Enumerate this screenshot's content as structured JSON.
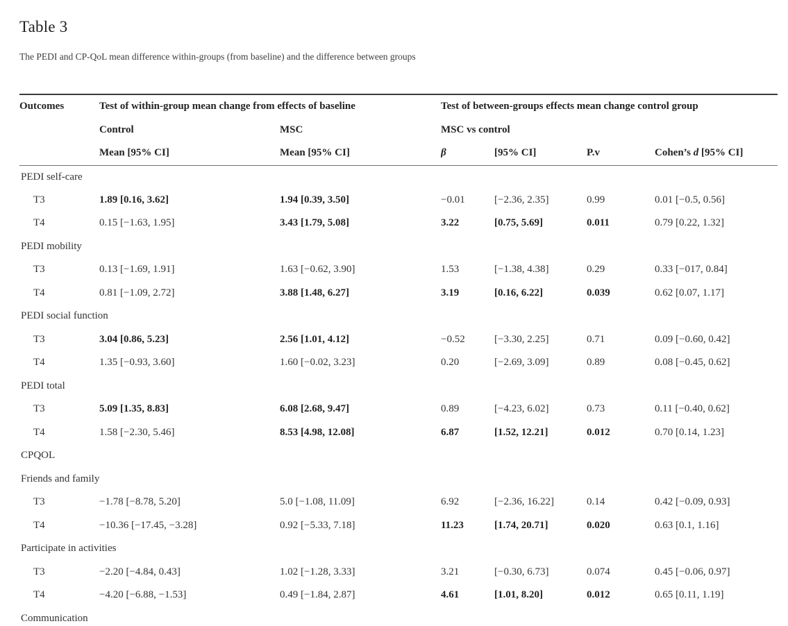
{
  "page": {
    "title": "Table 3",
    "subtitle": "The PEDI and CP-QoL mean difference within-groups (from baseline) and the difference between groups"
  },
  "colors": {
    "text": "#2e2e2e",
    "rule_top": "#3c3c3c",
    "rule_header_bottom": "#6f6f6f",
    "background": "#ffffff"
  },
  "table": {
    "header": {
      "outcomes": "Outcomes",
      "within_group": "Test of within-group mean change from effects of baseline",
      "between_groups": "Test of between-groups effects mean change control group",
      "control": "Control",
      "msc": "MSC",
      "msc_vs_control": "MSC vs control",
      "control_mean": "Mean [95% CI]",
      "msc_mean": "Mean [95% CI]",
      "beta": "β",
      "ci": "[95% CI]",
      "pv": "P.v",
      "cohen_prefix": "Cohen’s ",
      "cohen_d": "d",
      "cohen_suffix": " [95% CI]"
    },
    "sections": [
      {
        "label": "PEDI self-care",
        "rows": [
          {
            "time": "T3",
            "cells": [
              {
                "v": "1.89 [0.16, 3.62]",
                "b": true
              },
              {
                "v": "1.94 [0.39, 3.50]",
                "b": true
              },
              {
                "v": "−0.01",
                "b": false
              },
              {
                "v": "[−2.36, 2.35]",
                "b": false
              },
              {
                "v": "0.99",
                "b": false
              },
              {
                "v": "0.01 [−0.5, 0.56]",
                "b": false
              }
            ]
          },
          {
            "time": "T4",
            "cells": [
              {
                "v": "0.15 [−1.63, 1.95]",
                "b": false
              },
              {
                "v": "3.43 [1.79, 5.08]",
                "b": true
              },
              {
                "v": "3.22",
                "b": true
              },
              {
                "v": "[0.75, 5.69]",
                "b": true
              },
              {
                "v": "0.011",
                "b": true
              },
              {
                "v": "0.79 [0.22, 1.32]",
                "b": false
              }
            ]
          }
        ]
      },
      {
        "label": "PEDI mobility",
        "rows": [
          {
            "time": "T3",
            "cells": [
              {
                "v": "0.13 [−1.69, 1.91]",
                "b": false
              },
              {
                "v": "1.63 [−0.62, 3.90]",
                "b": false
              },
              {
                "v": "1.53",
                "b": false
              },
              {
                "v": "[−1.38, 4.38]",
                "b": false
              },
              {
                "v": "0.29",
                "b": false
              },
              {
                "v": "0.33 [−017, 0.84]",
                "b": false
              }
            ]
          },
          {
            "time": "T4",
            "cells": [
              {
                "v": "0.81 [−1.09, 2.72]",
                "b": false
              },
              {
                "v": "3.88 [1.48, 6.27]",
                "b": true
              },
              {
                "v": "3.19",
                "b": true
              },
              {
                "v": "[0.16, 6.22]",
                "b": true
              },
              {
                "v": "0.039",
                "b": true
              },
              {
                "v": "0.62 [0.07, 1.17]",
                "b": false
              }
            ]
          }
        ]
      },
      {
        "label": "PEDI social function",
        "rows": [
          {
            "time": "T3",
            "cells": [
              {
                "v": "3.04 [0.86, 5.23]",
                "b": true
              },
              {
                "v": "2.56 [1.01, 4.12]",
                "b": true
              },
              {
                "v": "−0.52",
                "b": false
              },
              {
                "v": "[−3.30, 2.25]",
                "b": false
              },
              {
                "v": "0.71",
                "b": false
              },
              {
                "v": "0.09 [−0.60, 0.42]",
                "b": false
              }
            ]
          },
          {
            "time": "T4",
            "cells": [
              {
                "v": "1.35 [−0.93, 3.60]",
                "b": false
              },
              {
                "v": "1.60 [−0.02, 3.23]",
                "b": false
              },
              {
                "v": "0.20",
                "b": false
              },
              {
                "v": "[−2.69, 3.09]",
                "b": false
              },
              {
                "v": "0.89",
                "b": false
              },
              {
                "v": "0.08 [−0.45, 0.62]",
                "b": false
              }
            ]
          }
        ]
      },
      {
        "label": "PEDI total",
        "rows": [
          {
            "time": "T3",
            "cells": [
              {
                "v": "5.09 [1.35, 8.83]",
                "b": true
              },
              {
                "v": "6.08 [2.68, 9.47]",
                "b": true
              },
              {
                "v": "0.89",
                "b": false
              },
              {
                "v": "[−4.23, 6.02]",
                "b": false
              },
              {
                "v": "0.73",
                "b": false
              },
              {
                "v": "0.11 [−0.40, 0.62]",
                "b": false
              }
            ]
          },
          {
            "time": "T4",
            "cells": [
              {
                "v": "1.58 [−2.30, 5.46]",
                "b": false
              },
              {
                "v": "8.53 [4.98, 12.08]",
                "b": true
              },
              {
                "v": "6.87",
                "b": true
              },
              {
                "v": "[1.52, 12.21]",
                "b": true
              },
              {
                "v": "0.012",
                "b": true
              },
              {
                "v": "0.70 [0.14, 1.23]",
                "b": false
              }
            ]
          }
        ]
      },
      {
        "label": "CPQOL",
        "rows": []
      },
      {
        "label": "Friends and family",
        "rows": [
          {
            "time": "T3",
            "cells": [
              {
                "v": "−1.78 [−8.78, 5.20]",
                "b": false
              },
              {
                "v": "5.0 [−1.08, 11.09]",
                "b": false
              },
              {
                "v": "6.92",
                "b": false
              },
              {
                "v": "[−2.36, 16.22]",
                "b": false
              },
              {
                "v": "0.14",
                "b": false
              },
              {
                "v": "0.42 [−0.09, 0.93]",
                "b": false
              }
            ]
          },
          {
            "time": "T4",
            "cells": [
              {
                "v": "−10.36 [−17.45, −3.28]",
                "b": false
              },
              {
                "v": "0.92 [−5.33, 7.18]",
                "b": false
              },
              {
                "v": "11.23",
                "b": true
              },
              {
                "v": "[1.74, 20.71]",
                "b": true
              },
              {
                "v": "0.020",
                "b": true
              },
              {
                "v": "0.63 [0.1, 1.16]",
                "b": false
              }
            ]
          }
        ]
      },
      {
        "label": "Participate in activities",
        "rows": [
          {
            "time": "T3",
            "cells": [
              {
                "v": "−2.20 [−4.84, 0.43]",
                "b": false
              },
              {
                "v": "1.02 [−1.28, 3.33]",
                "b": false
              },
              {
                "v": "3.21",
                "b": false
              },
              {
                "v": "[−0.30, 6.73]",
                "b": false
              },
              {
                "v": "0.074",
                "b": false
              },
              {
                "v": "0.45 [−0.06, 0.97]",
                "b": false
              }
            ]
          },
          {
            "time": "T4",
            "cells": [
              {
                "v": "−4.20 [−6.88, −1.53]",
                "b": false
              },
              {
                "v": "0.49 [−1.84, 2.87]",
                "b": false
              },
              {
                "v": "4.61",
                "b": true
              },
              {
                "v": "[1.01, 8.20]",
                "b": true
              },
              {
                "v": "0.012",
                "b": true
              },
              {
                "v": "0.65 [0.11, 1.19]",
                "b": false
              }
            ]
          }
        ]
      },
      {
        "label": "Communication",
        "rows": []
      }
    ],
    "cell_names": [
      "control-mean-cell",
      "msc-mean-cell",
      "beta-cell",
      "ci-cell",
      "pv-cell",
      "cohen-d-cell"
    ]
  }
}
